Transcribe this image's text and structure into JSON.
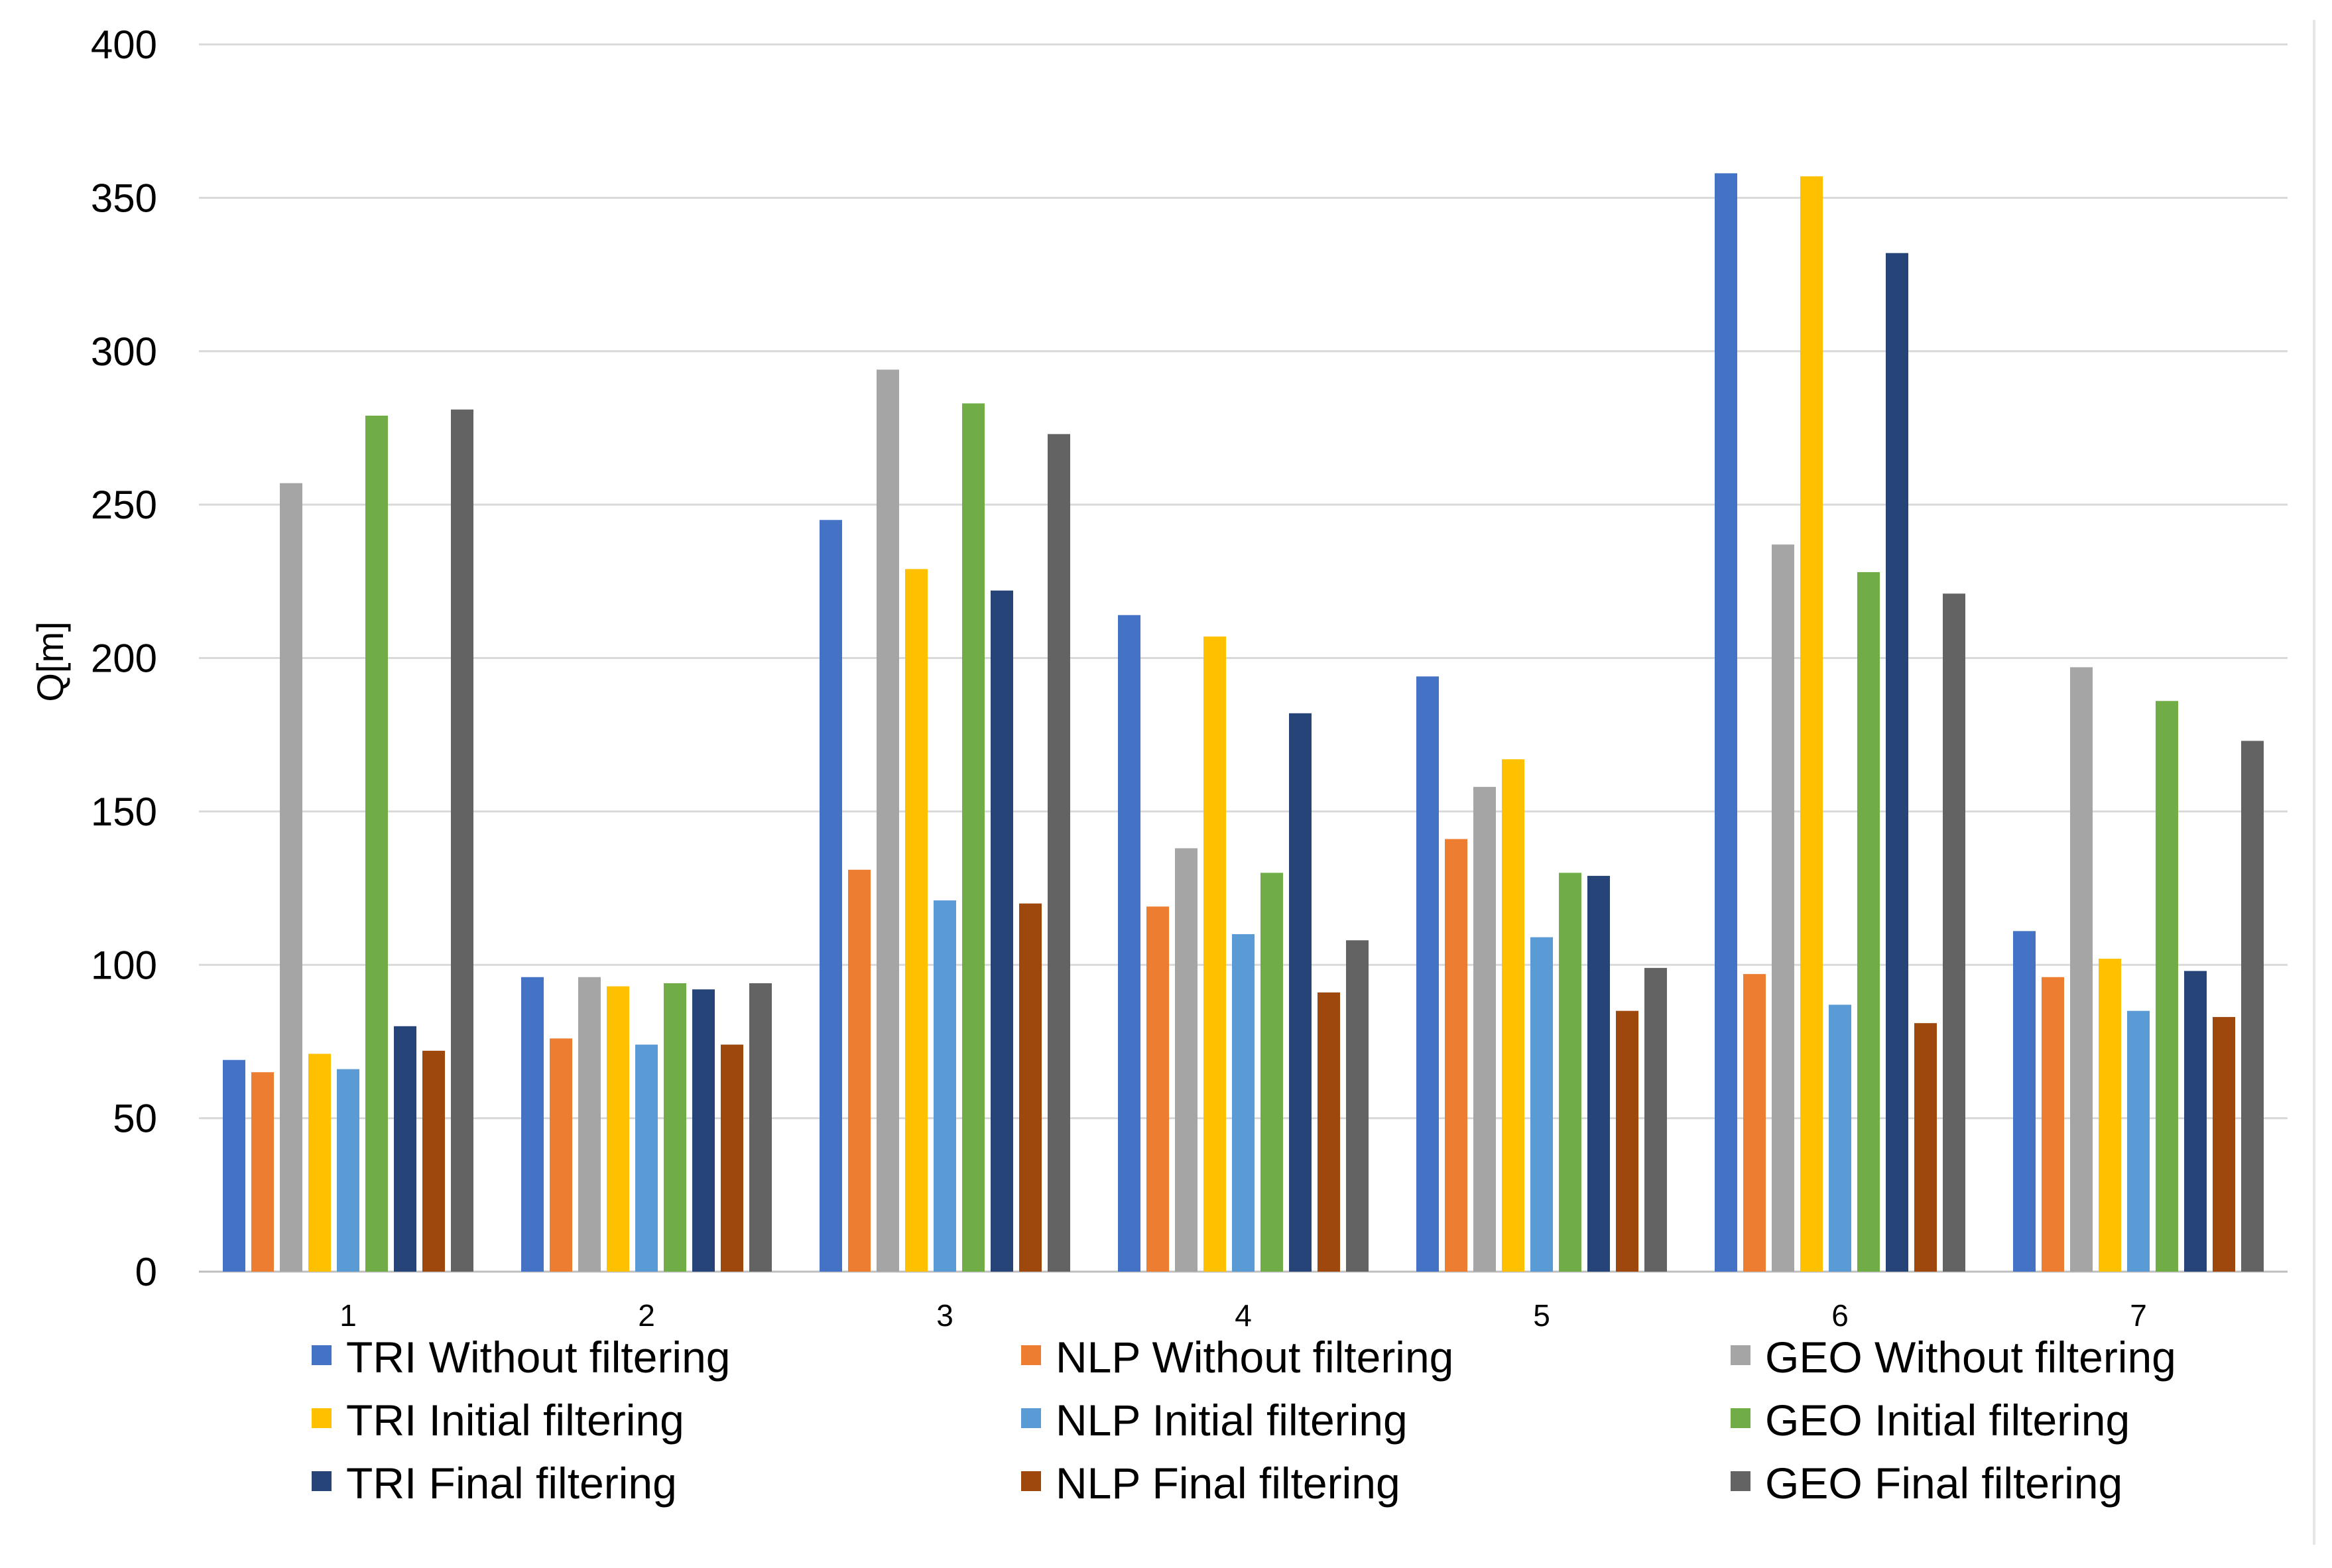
{
  "chart_data": {
    "type": "bar",
    "title": "",
    "xlabel": "",
    "ylabel": "Q[m]",
    "ylim": [
      0,
      400
    ],
    "yticks": [
      0,
      50,
      100,
      150,
      200,
      250,
      300,
      350,
      400
    ],
    "grid": true,
    "legend_position": "bottom",
    "categories": [
      "1",
      "2",
      "3",
      "4",
      "5",
      "6",
      "7"
    ],
    "series": [
      {
        "name": "TRI Without filtering",
        "color": "#4472c4",
        "values": [
          69,
          96,
          245,
          214,
          194,
          358,
          111
        ]
      },
      {
        "name": "NLP Without filtering",
        "color": "#ed7d31",
        "values": [
          65,
          76,
          131,
          119,
          141,
          97,
          96
        ]
      },
      {
        "name": "GEO Without filtering",
        "color": "#a5a5a5",
        "values": [
          257,
          96,
          294,
          138,
          158,
          237,
          197
        ]
      },
      {
        "name": "TRI Initial filtering",
        "color": "#ffc000",
        "values": [
          71,
          93,
          229,
          207,
          167,
          357,
          102
        ]
      },
      {
        "name": "NLP Initial filtering",
        "color": "#5b9bd5",
        "values": [
          66,
          74,
          121,
          110,
          109,
          87,
          85
        ]
      },
      {
        "name": "GEO Initial filtering",
        "color": "#70ad47",
        "values": [
          279,
          94,
          283,
          130,
          130,
          228,
          186
        ]
      },
      {
        "name": "TRI Final filtering",
        "color": "#264478",
        "values": [
          80,
          92,
          222,
          182,
          129,
          332,
          98
        ]
      },
      {
        "name": "NLP Final filtering",
        "color": "#9e480e",
        "values": [
          72,
          74,
          120,
          91,
          85,
          81,
          83
        ]
      },
      {
        "name": "GEO Final filtering",
        "color": "#636363",
        "values": [
          281,
          94,
          273,
          108,
          99,
          221,
          173
        ]
      }
    ]
  }
}
